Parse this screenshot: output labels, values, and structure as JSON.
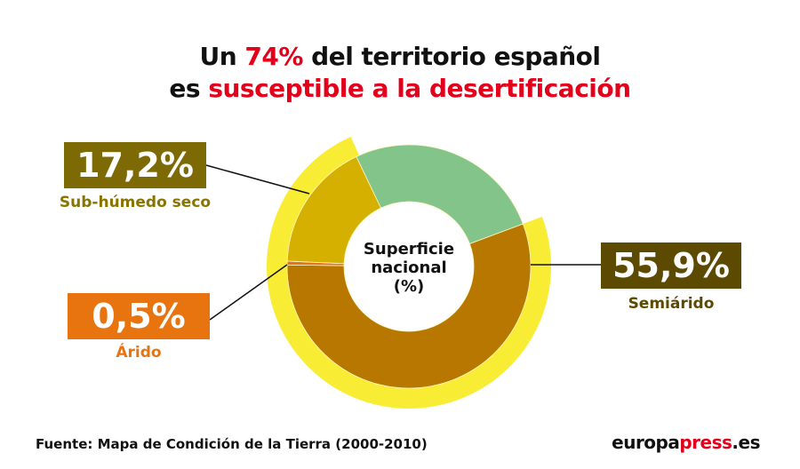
{
  "title": {
    "line1_pre": "Un ",
    "line1_hl": "74%",
    "line1_post": " del territorio español",
    "line2_pre": "es ",
    "line2_hl": "susceptible a la desertificación"
  },
  "center_label": {
    "line1": "Superficie",
    "line2": "nacional",
    "line3": "(%)"
  },
  "chart_data": {
    "type": "pie",
    "subtype": "donut",
    "center_text": "Superficie nacional (%)",
    "slices": [
      {
        "name": "Semiárido",
        "value": 55.9,
        "label": "55,9%",
        "color": "#b87800"
      },
      {
        "name": "Árido",
        "value": 0.5,
        "label": "0,5%",
        "color": "#e8741a"
      },
      {
        "name": "Sub-húmedo seco",
        "value": 17.2,
        "label": "17,2%",
        "color": "#d6b000"
      },
      {
        "name": "",
        "value": 26.4,
        "label": "",
        "color": "#82c48a"
      }
    ],
    "outer_ring": {
      "value": 74,
      "color": "#f9ec35"
    }
  },
  "labels": {
    "subhumedo": {
      "value": "17,2%",
      "name": "Sub-húmedo seco",
      "box_color": "#7d6a05",
      "text_color": "#8a7400"
    },
    "arido": {
      "value": "0,5%",
      "name": "Árido",
      "box_color": "#e87410",
      "text_color": "#e87410"
    },
    "semiarido": {
      "value": "55,9%",
      "name": "Semiárido",
      "box_color": "#5c4a00",
      "text_color": "#5c4a00"
    }
  },
  "footer": {
    "source": "Fuente: Mapa de Condición de la Tierra (2000-2010)",
    "logo_a": "europa",
    "logo_b": "press",
    "logo_c": ".es"
  }
}
